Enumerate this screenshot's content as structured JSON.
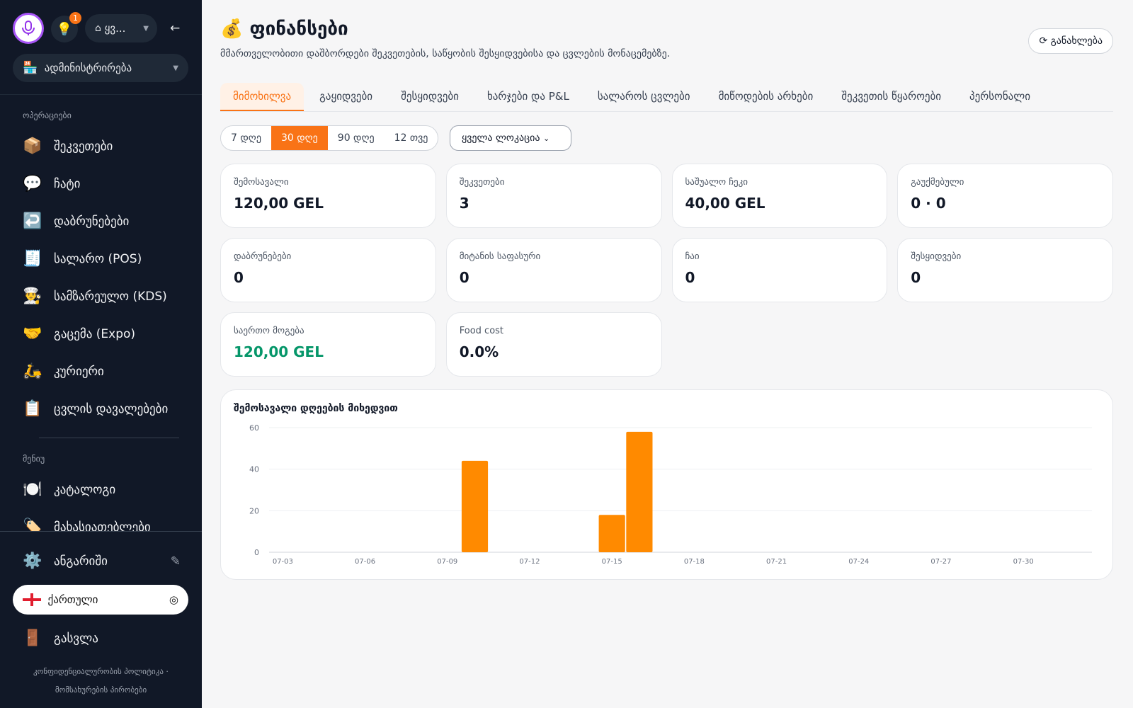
{
  "sidebar": {
    "hint_icon": "💡",
    "notification_count": "1",
    "store": "ყვ...",
    "role": "ადმინისტრირება",
    "sections": [
      {
        "title": "ოპერაციები",
        "items": [
          {
            "icon": "📦",
            "label": "შეკვეთები"
          },
          {
            "icon": "💬",
            "label": "ჩატი"
          },
          {
            "icon": "↩️",
            "label": "დაბრუნებები"
          },
          {
            "icon": "🧾",
            "label": "სალარო (POS)"
          },
          {
            "icon": "👨‍🍳",
            "label": "სამზარეულო (KDS)"
          },
          {
            "icon": "🤝",
            "label": "გაცემა (Expo)"
          },
          {
            "icon": "🛵",
            "label": "კურიერი"
          },
          {
            "icon": "📋",
            "label": "ცვლის დავალებები"
          }
        ]
      },
      {
        "title": "მენიუ",
        "items": [
          {
            "icon": "🍽️",
            "label": "კატალოგი"
          },
          {
            "icon": "🏷️",
            "label": "მახასიათებლები"
          }
        ]
      }
    ],
    "account": {
      "icon": "⚙️",
      "label": "ანგარიში"
    },
    "language": "ქართული",
    "logout": {
      "icon": "🚪",
      "label": "გასვლა"
    },
    "footer_links": [
      "კონფიდენციალურობის პოლიტიკა",
      "მომსახურების პირობები"
    ]
  },
  "header": {
    "icon": "💰",
    "title": "ფინანსები",
    "subtitle": "მმართველობითი დაშბორდები შეკვეთების, საწყობის შესყიდვებისა და ცვლების მონაცემებზე.",
    "refresh": "⟳ განახლება"
  },
  "tabs": [
    "მიმოხილვა",
    "გაყიდვები",
    "შესყიდვები",
    "ხარჯები და P&L",
    "სალაროს ცვლები",
    "მიწოდების არხები",
    "შეკვეთის წყაროები",
    "პერსონალი"
  ],
  "active_tab": 0,
  "periods": [
    "7 დღე",
    "30 დღე",
    "90 დღე",
    "12 თვე"
  ],
  "active_period": 1,
  "location": "ყველა ლოკაცია",
  "cards": [
    {
      "label": "შემოსავალი",
      "value": "120,00 GEL"
    },
    {
      "label": "შეკვეთები",
      "value": "3"
    },
    {
      "label": "საშუალო ჩეკი",
      "value": "40,00 GEL"
    },
    {
      "label": "გაუქმებული",
      "value": "0 · 0"
    },
    {
      "label": "დაბრუნებები",
      "value": "0"
    },
    {
      "label": "მიტანის საფასური",
      "value": "0"
    },
    {
      "label": "ჩაი",
      "value": "0"
    },
    {
      "label": "შესყიდვები",
      "value": "0"
    },
    {
      "label": "საერთო მოგება",
      "value": "120,00 GEL",
      "color": "#059669"
    },
    {
      "label": "Food cost",
      "value": "0.0%"
    }
  ],
  "chart_data": {
    "type": "bar",
    "title": "შემოსავალი დღეების მიხედვით",
    "color": "#ff8a00",
    "grid": true,
    "categories": [
      "07-03",
      null,
      null,
      "07-06",
      null,
      null,
      "07-09",
      null,
      null,
      "07-12",
      null,
      null,
      "07-15",
      null,
      null,
      "07-18",
      null,
      null,
      "07-21",
      null,
      null,
      "07-24",
      null,
      null,
      "07-27",
      null,
      null,
      "07-30",
      null,
      null
    ],
    "values": [
      0,
      0,
      0,
      0,
      0,
      0,
      0,
      44,
      0,
      0,
      0,
      0,
      18,
      58,
      0,
      0,
      0,
      0,
      0,
      0,
      0,
      0,
      0,
      0,
      0,
      0,
      0,
      0,
      0,
      0
    ],
    "ylim": [
      0,
      60
    ],
    "yticks": [
      0,
      20,
      40,
      60
    ]
  }
}
